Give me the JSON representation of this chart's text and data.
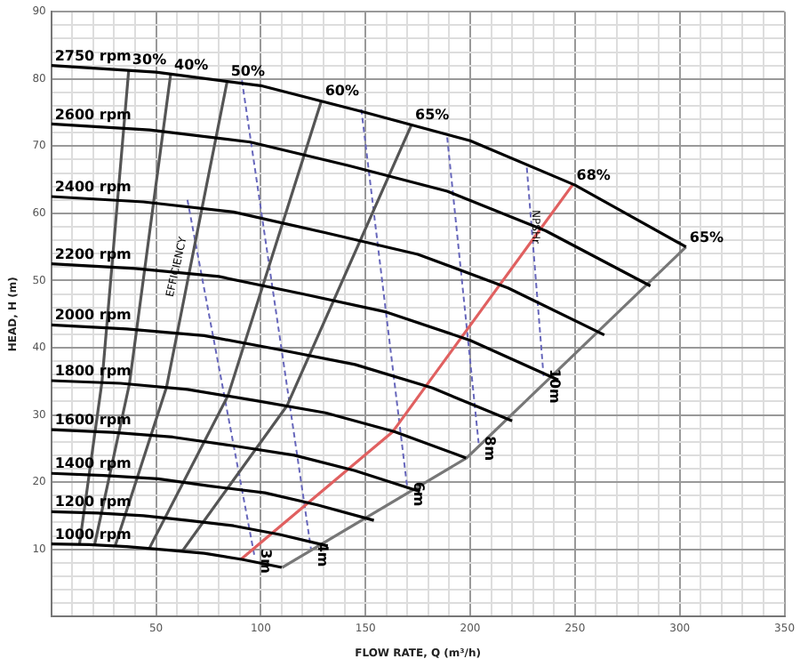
{
  "chart_data": {
    "type": "line",
    "xlabel": "FLOW RATE, Q (m³/h)",
    "ylabel": "HEAD, H (m)",
    "xlim": [
      0,
      350
    ],
    "ylim": [
      0,
      90
    ],
    "xticks": [
      {
        "value": 10,
        "label": null
      },
      {
        "value": 20,
        "label": null
      },
      {
        "value": 30,
        "label": null
      },
      {
        "value": 40,
        "label": null
      },
      50,
      {
        "value": 60,
        "label": null
      },
      {
        "value": 70,
        "label": null
      },
      {
        "value": 80,
        "label": null
      },
      {
        "value": 90,
        "label": null
      },
      100,
      {
        "value": 110,
        "label": null
      },
      {
        "value": 120,
        "label": null
      },
      {
        "value": 130,
        "label": null
      },
      {
        "value": 140,
        "label": null
      },
      150,
      {
        "value": 160,
        "label": null
      },
      {
        "value": 170,
        "label": null
      },
      {
        "value": 180,
        "label": null
      },
      {
        "value": 190,
        "label": null
      },
      200,
      {
        "value": 210,
        "label": null
      },
      {
        "value": 220,
        "label": null
      },
      {
        "value": 230,
        "label": null
      },
      {
        "value": 240,
        "label": null
      },
      250,
      {
        "value": 260,
        "label": null
      },
      {
        "value": 270,
        "label": null
      },
      {
        "value": 280,
        "label": null
      },
      {
        "value": 290,
        "label": null
      },
      300,
      {
        "value": 310,
        "label": null
      },
      {
        "value": 320,
        "label": null
      },
      {
        "value": 330,
        "label": null
      },
      {
        "value": 340,
        "label": null
      },
      350
    ],
    "yticks": [
      {
        "value": 2,
        "label": null
      },
      {
        "value": 4,
        "label": null
      },
      {
        "value": 6,
        "label": null
      },
      {
        "value": 8,
        "label": null
      },
      10,
      {
        "value": 12,
        "label": null
      },
      {
        "value": 14,
        "label": null
      },
      {
        "value": 16,
        "label": null
      },
      {
        "value": 18,
        "label": null
      },
      20,
      {
        "value": 22,
        "label": null
      },
      {
        "value": 24,
        "label": null
      },
      {
        "value": 26,
        "label": null
      },
      {
        "value": 28,
        "label": null
      },
      30,
      {
        "value": 32,
        "label": null
      },
      {
        "value": 34,
        "label": null
      },
      {
        "value": 36,
        "label": null
      },
      {
        "value": 38,
        "label": null
      },
      40,
      {
        "value": 42,
        "label": null
      },
      {
        "value": 44,
        "label": null
      },
      {
        "value": 46,
        "label": null
      },
      {
        "value": 48,
        "label": null
      },
      50,
      {
        "value": 52,
        "label": null
      },
      {
        "value": 54,
        "label": null
      },
      {
        "value": 56,
        "label": null
      },
      {
        "value": 58,
        "label": null
      },
      60,
      {
        "value": 62,
        "label": null
      },
      {
        "value": 64,
        "label": null
      },
      {
        "value": 66,
        "label": null
      },
      {
        "value": 68,
        "label": null
      },
      70,
      {
        "value": 72,
        "label": null
      },
      {
        "value": 74,
        "label": null
      },
      {
        "value": 76,
        "label": null
      },
      {
        "value": 78,
        "label": null
      },
      80,
      {
        "value": 82,
        "label": null
      },
      {
        "value": 84,
        "label": null
      },
      {
        "value": 86,
        "label": null
      },
      {
        "value": 88,
        "label": null
      },
      90
    ],
    "grid": true,
    "legend": false,
    "marker": "none",
    "line_style": "solid",
    "series": [
      {
        "name": "2750 rpm",
        "color": "#000000",
        "x": [
          0,
          50,
          100,
          150,
          200,
          250,
          303
        ],
        "values": [
          82,
          81,
          79,
          75,
          70.8,
          64.2,
          55
        ]
      },
      {
        "name": "2600 rpm",
        "color": "#000000",
        "x": [
          0,
          47,
          95,
          142,
          189,
          236,
          286
        ],
        "values": [
          73.3,
          72.4,
          70.6,
          67.1,
          63.3,
          57.4,
          49.2
        ]
      },
      {
        "name": "2400 rpm",
        "color": "#000000",
        "x": [
          0,
          44,
          87,
          131,
          175,
          218,
          264
        ],
        "values": [
          62.5,
          61.7,
          60.2,
          57.1,
          53.9,
          48.9,
          41.9
        ]
      },
      {
        "name": "2200 rpm",
        "color": "#000000",
        "x": [
          0,
          40,
          80,
          120,
          160,
          200,
          242
        ],
        "values": [
          52.5,
          51.8,
          50.6,
          48,
          45.3,
          41.1,
          35.2
        ]
      },
      {
        "name": "2000 rpm",
        "color": "#000000",
        "x": [
          0,
          36,
          73,
          109,
          145,
          182,
          220
        ],
        "values": [
          43.4,
          42.8,
          41.8,
          39.7,
          37.5,
          34,
          29.1
        ]
      },
      {
        "name": "1800 rpm",
        "color": "#000000",
        "x": [
          0,
          33,
          65,
          98,
          131,
          164,
          198
        ],
        "values": [
          35.1,
          34.7,
          33.8,
          32.1,
          30.3,
          27.5,
          23.6
        ]
      },
      {
        "name": "1600 rpm",
        "color": "#000000",
        "x": [
          0,
          29,
          58,
          87,
          116,
          145,
          176
        ],
        "values": [
          27.8,
          27.4,
          26.7,
          25.4,
          24,
          21.7,
          18.6
        ]
      },
      {
        "name": "1400 rpm",
        "color": "#000000",
        "x": [
          0,
          25,
          51,
          76,
          102,
          127,
          154
        ],
        "values": [
          21.3,
          21,
          20.5,
          19.4,
          18.4,
          16.6,
          14.3
        ]
      },
      {
        "name": "1200 rpm",
        "color": "#000000",
        "x": [
          0,
          22,
          44,
          65,
          87,
          109,
          132
        ],
        "values": [
          15.6,
          15.4,
          15,
          14.3,
          13.5,
          12.2,
          10.5
        ]
      },
      {
        "name": "1000 rpm",
        "color": "#000000",
        "x": [
          0,
          18,
          36,
          55,
          73,
          91,
          110
        ],
        "values": [
          10.8,
          10.7,
          10.4,
          9.9,
          9.4,
          8.5,
          7.3
        ]
      },
      {
        "name": "30%",
        "color": "#555555",
        "x": [
          37,
          24.2,
          13.5
        ],
        "values": [
          81.4,
          34.9,
          10.8
        ]
      },
      {
        "name": "40%",
        "color": "#555555",
        "x": [
          57,
          37.3,
          20.7
        ],
        "values": [
          80.7,
          34.6,
          10.7
        ]
      },
      {
        "name": "50%",
        "color": "#555555",
        "x": [
          84,
          55,
          30.5
        ],
        "values": [
          79.7,
          34.1,
          10.5
        ]
      },
      {
        "name": "60%",
        "color": "#555555",
        "x": [
          129,
          84.4,
          46.9
        ],
        "values": [
          76.8,
          32.9,
          10.2
        ]
      },
      {
        "name": "65%",
        "color": "#555555",
        "x": [
          172,
          112.6,
          62.5
        ],
        "values": [
          73.2,
          31.4,
          9.7
        ]
      },
      {
        "name": "68%",
        "color": "#e06060",
        "x": [
          249,
          163,
          90.5
        ],
        "values": [
          64.3,
          27.5,
          8.5
        ]
      },
      {
        "name": "65%",
        "color": "#777777",
        "x": [
          303,
          198.3,
          110.2
        ],
        "values": [
          55,
          23.6,
          7.3
        ]
      },
      {
        "name": "3m",
        "color": "#6666bb",
        "line_style": "dashed",
        "x": [
          65,
          97
        ],
        "values": [
          62,
          9
        ]
      },
      {
        "name": "4m",
        "color": "#6666bb",
        "line_style": "dashed",
        "x": [
          91,
          124
        ],
        "values": [
          79.8,
          10
        ]
      },
      {
        "name": "6m",
        "color": "#6666bb",
        "line_style": "dashed",
        "x": [
          148,
          170
        ],
        "values": [
          75.5,
          19
        ]
      },
      {
        "name": "8m",
        "color": "#6666bb",
        "line_style": "dashed",
        "x": [
          189,
          204
        ],
        "values": [
          71.3,
          25.8
        ]
      },
      {
        "name": "10m",
        "color": "#6666bb",
        "line_style": "dashed",
        "x": [
          227,
          235
        ],
        "values": [
          66.8,
          35.8
        ]
      }
    ],
    "annotations": [
      {
        "text": "EFFICIENCY",
        "x": 60,
        "y": 52
      },
      {
        "text": "NPSHr",
        "x": 231,
        "y": 58
      }
    ]
  }
}
